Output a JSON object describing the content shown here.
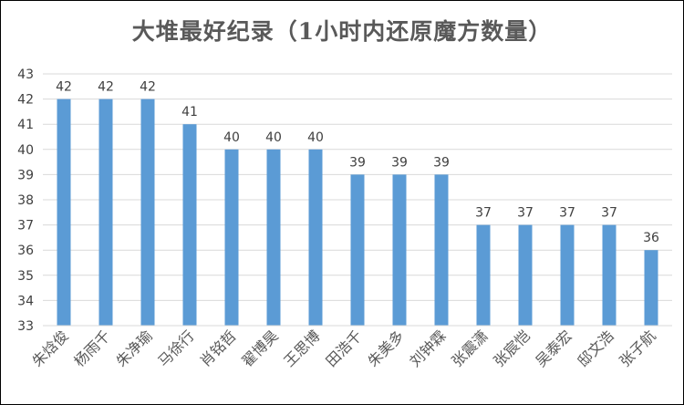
{
  "chart_data": {
    "type": "bar",
    "title": "大堆最好纪录（1小时内还原魔方数量）",
    "xlabel": "",
    "ylabel": "",
    "ylim": [
      33,
      43
    ],
    "yticks": [
      33,
      34,
      35,
      36,
      37,
      38,
      39,
      40,
      41,
      42,
      43
    ],
    "grid": true,
    "legend": "none",
    "bar_color": "#5b9bd5",
    "categories": [
      "朱焓俊",
      "杨雨千",
      "朱净瑜",
      "马徐行",
      "肖铭哲",
      "翟博昊",
      "王思博",
      "田浩千",
      "朱美多",
      "刘钟霖",
      "张震潇",
      "张宸恺",
      "吴泰宏",
      "邸文浩",
      "张子航"
    ],
    "values": [
      42,
      42,
      42,
      41,
      40,
      40,
      40,
      39,
      39,
      39,
      37,
      37,
      37,
      37,
      36
    ]
  }
}
